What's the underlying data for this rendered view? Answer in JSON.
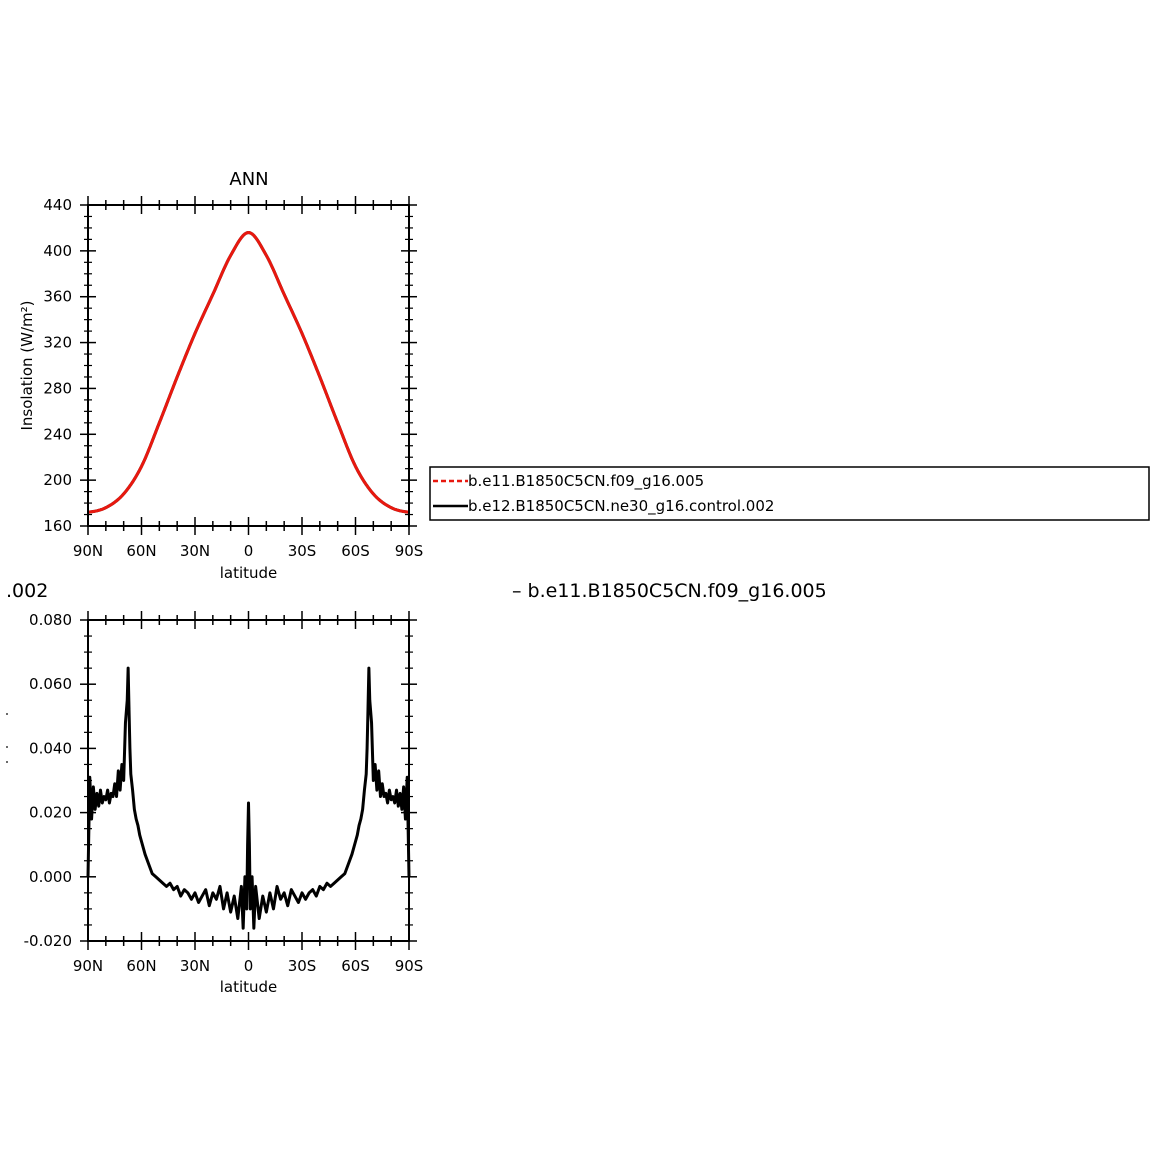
{
  "chart_data": [
    {
      "type": "line",
      "title": "ANN",
      "xlabel": "latitude",
      "ylabel": "Insolation (W/m²)",
      "xlim": [
        90,
        -90
      ],
      "ylim": [
        160,
        440
      ],
      "x_ticks": [
        {
          "value": 90,
          "label": "90N"
        },
        {
          "value": 60,
          "label": "60N"
        },
        {
          "value": 30,
          "label": "30N"
        },
        {
          "value": 0,
          "label": "0"
        },
        {
          "value": -30,
          "label": "30S"
        },
        {
          "value": -60,
          "label": "60S"
        },
        {
          "value": -90,
          "label": "90S"
        }
      ],
      "y_ticks": [
        {
          "value": 160,
          "label": "160"
        },
        {
          "value": 200,
          "label": "200"
        },
        {
          "value": 240,
          "label": "240"
        },
        {
          "value": 280,
          "label": "280"
        },
        {
          "value": 320,
          "label": "320"
        },
        {
          "value": 360,
          "label": "360"
        },
        {
          "value": 400,
          "label": "400"
        },
        {
          "value": 440,
          "label": "440"
        }
      ],
      "grid": false,
      "legend_position": "right",
      "x": [
        90,
        80,
        70,
        60,
        50,
        40,
        30,
        20,
        10,
        0,
        -10,
        -20,
        -30,
        -40,
        -50,
        -60,
        -70,
        -80,
        -90
      ],
      "series": [
        {
          "name": "b.e11.B1850C5CN.f09_g16.005",
          "color": "#e8180f",
          "dash": "dashed",
          "values": [
            172,
            176,
            188,
            212,
            250,
            290,
            328,
            362,
            396,
            416,
            396,
            362,
            328,
            290,
            250,
            212,
            188,
            176,
            172
          ]
        },
        {
          "name": "b.e12.B1850C5CN.ne30_g16.control.002",
          "color": "#000000",
          "dash": "solid",
          "values": [
            172,
            176,
            188,
            212,
            250,
            290,
            328,
            362,
            396,
            416,
            396,
            362,
            328,
            290,
            250,
            212,
            188,
            176,
            172
          ]
        }
      ]
    },
    {
      "type": "line",
      "title": "",
      "xlabel": "latitude",
      "ylabel": "",
      "xlim": [
        90,
        -90
      ],
      "ylim": [
        -0.02,
        0.08
      ],
      "x_ticks": [
        {
          "value": 90,
          "label": "90N"
        },
        {
          "value": 60,
          "label": "60N"
        },
        {
          "value": 30,
          "label": "30N"
        },
        {
          "value": 0,
          "label": "0"
        },
        {
          "value": -30,
          "label": "30S"
        },
        {
          "value": -60,
          "label": "60S"
        },
        {
          "value": -90,
          "label": "90S"
        }
      ],
      "y_ticks": [
        {
          "value": -0.02,
          "label": "-0.020"
        },
        {
          "value": 0.0,
          "label": "0.000"
        },
        {
          "value": 0.02,
          "label": "0.020"
        },
        {
          "value": 0.04,
          "label": "0.040"
        },
        {
          "value": 0.06,
          "label": "0.060"
        },
        {
          "value": 0.08,
          "label": "0.080"
        }
      ],
      "grid": false,
      "series": [
        {
          "name": "",
          "color": "#000000",
          "dash": "solid",
          "x": [
            90,
            89,
            88,
            87,
            86,
            85,
            84,
            83,
            82,
            81,
            80,
            79,
            78,
            77,
            76,
            75,
            74,
            73,
            72,
            71,
            70,
            69,
            68,
            67.5,
            67,
            66.5,
            66,
            65,
            64,
            63,
            62,
            61,
            60,
            58,
            56,
            54,
            52,
            50,
            48,
            46,
            44,
            42,
            40,
            38,
            36,
            34,
            32,
            30,
            28,
            26,
            24,
            22,
            20,
            18,
            16,
            14,
            12,
            10,
            8,
            6,
            4,
            3,
            2,
            1,
            0.5,
            0,
            -0.5,
            -1,
            -2,
            -3,
            -4,
            -6,
            -8,
            -10,
            -12,
            -14,
            -16,
            -18,
            -20,
            -22,
            -24,
            -26,
            -28,
            -30,
            -32,
            -34,
            -36,
            -38,
            -40,
            -42,
            -44,
            -46,
            -48,
            -50,
            -52,
            -54,
            -56,
            -58,
            -60,
            -61,
            -62,
            -63,
            -64,
            -65,
            -66,
            -66.5,
            -67,
            -67.5,
            -68,
            -69,
            -70,
            -71,
            -72,
            -73,
            -74,
            -75,
            -76,
            -77,
            -78,
            -79,
            -80,
            -81,
            -82,
            -83,
            -84,
            -85,
            -86,
            -87,
            -88,
            -89,
            -90
          ],
          "values": [
            0.0,
            0.031,
            0.018,
            0.028,
            0.021,
            0.026,
            0.022,
            0.027,
            0.023,
            0.025,
            0.024,
            0.027,
            0.023,
            0.026,
            0.025,
            0.029,
            0.025,
            0.033,
            0.027,
            0.035,
            0.03,
            0.048,
            0.055,
            0.065,
            0.052,
            0.04,
            0.032,
            0.027,
            0.021,
            0.018,
            0.016,
            0.013,
            0.011,
            0.007,
            0.004,
            0.001,
            0.0,
            -0.001,
            -0.002,
            -0.003,
            -0.002,
            -0.004,
            -0.003,
            -0.006,
            -0.004,
            -0.005,
            -0.007,
            -0.005,
            -0.008,
            -0.006,
            -0.004,
            -0.009,
            -0.005,
            -0.007,
            -0.003,
            -0.01,
            -0.005,
            -0.011,
            -0.006,
            -0.013,
            -0.003,
            -0.016,
            0.0,
            -0.01,
            0.01,
            0.023,
            0.01,
            -0.01,
            0.0,
            -0.016,
            -0.003,
            -0.013,
            -0.006,
            -0.011,
            -0.005,
            -0.01,
            -0.003,
            -0.007,
            -0.005,
            -0.009,
            -0.004,
            -0.006,
            -0.008,
            -0.005,
            -0.007,
            -0.005,
            -0.004,
            -0.006,
            -0.003,
            -0.004,
            -0.002,
            -0.003,
            -0.002,
            -0.001,
            0.0,
            0.001,
            0.004,
            0.007,
            0.011,
            0.013,
            0.016,
            0.018,
            0.021,
            0.027,
            0.032,
            0.04,
            0.052,
            0.065,
            0.055,
            0.048,
            0.03,
            0.035,
            0.027,
            0.033,
            0.025,
            0.029,
            0.025,
            0.026,
            0.023,
            0.027,
            0.024,
            0.025,
            0.023,
            0.027,
            0.022,
            0.026,
            0.021,
            0.028,
            0.018,
            0.031,
            0.0
          ]
        }
      ]
    }
  ],
  "bottom_partial_label": ".002",
  "bottom_legend_text": "– b.e11.B1850C5CN.f09_g16.005"
}
